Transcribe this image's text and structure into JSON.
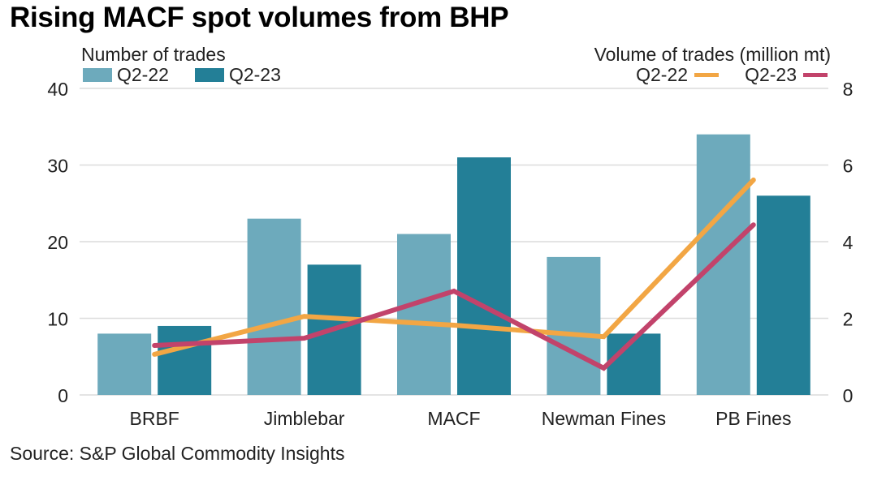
{
  "chart_data": {
    "type": "bar",
    "title": "Rising MACF spot volumes from BHP",
    "source": "Source: S&P Global Commodity Insights",
    "categories": [
      "BRBF",
      "Jimblebar",
      "MACF",
      "Newman Fines",
      "PB Fines"
    ],
    "left_axis": {
      "label": "Number of trades",
      "ylim": [
        0,
        40
      ],
      "ticks": [
        "0",
        "10",
        "20",
        "30",
        "40"
      ]
    },
    "right_axis": {
      "label": "Volume of trades (million mt)",
      "ylim": [
        0,
        8
      ],
      "ticks": [
        "0",
        "2",
        "4",
        "6",
        "8"
      ]
    },
    "grid": true,
    "bar_series": [
      {
        "name": "Q2-22",
        "color": "#6daabc",
        "values": [
          8,
          23,
          21,
          18,
          34
        ]
      },
      {
        "name": "Q2-23",
        "color": "#237f97",
        "values": [
          9,
          17,
          31,
          8,
          26
        ]
      }
    ],
    "line_series": [
      {
        "name": "Q2-22",
        "color": "#f2a644",
        "values": [
          1.06,
          2.05,
          1.82,
          1.52,
          5.61
        ]
      },
      {
        "name": "Q2-23",
        "color": "#c2436b",
        "values": [
          1.29,
          1.48,
          2.71,
          0.7,
          4.44
        ]
      }
    ],
    "legend_placement": "top"
  }
}
